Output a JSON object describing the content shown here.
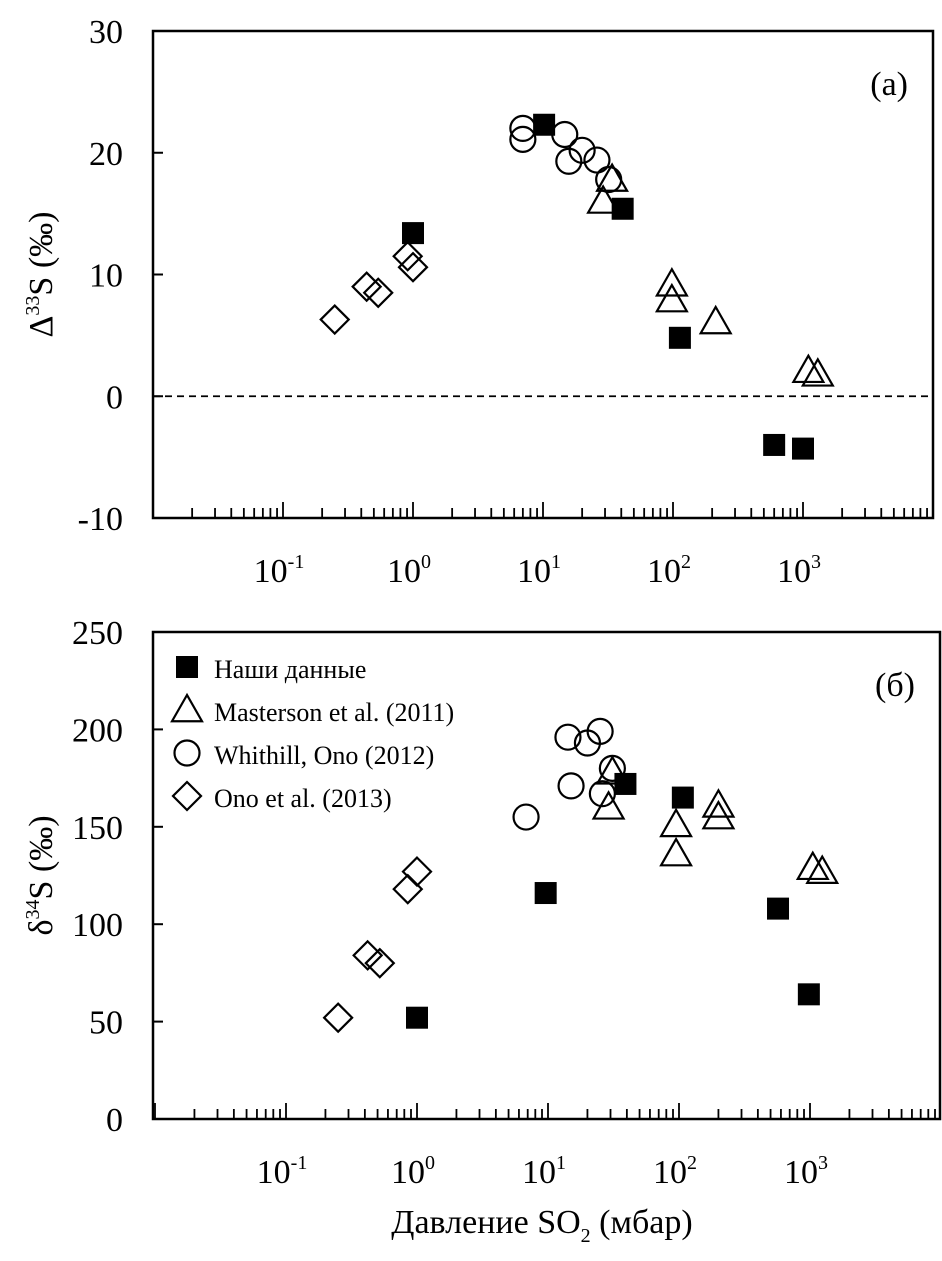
{
  "chart_data": [
    {
      "type": "scatter",
      "panel_label": "(a)",
      "ylabel_prefix": "Δ",
      "ylabel_sup": "33",
      "ylabel_rest": "S (‰)",
      "xscale": "log",
      "xlim": [
        0.01,
        10000
      ],
      "ylim": [
        -10,
        30
      ],
      "yticks": [
        -10,
        0,
        10,
        20,
        30
      ],
      "xtick_labels": [
        {
          "base": "10",
          "exp": "-1",
          "value": 0.1
        },
        {
          "base": "10",
          "exp": "0",
          "value": 1
        },
        {
          "base": "10",
          "exp": "1",
          "value": 10
        },
        {
          "base": "10",
          "exp": "2",
          "value": 100
        },
        {
          "base": "10",
          "exp": "3",
          "value": 1000
        }
      ],
      "reference_line": {
        "y": 0,
        "style": "dashed"
      },
      "grid": false,
      "series": [
        {
          "name": "Наши данные",
          "marker": "filled-square",
          "points": [
            [
              1.0,
              13.4
            ],
            [
              10.2,
              22.3
            ],
            [
              41,
              15.4
            ],
            [
              113,
              4.8
            ],
            [
              600,
              -4.0
            ],
            [
              1000,
              -4.3
            ]
          ]
        },
        {
          "name": "Masterson et al. (2011)",
          "marker": "open-triangle",
          "points": [
            [
              34,
              17.8
            ],
            [
              29,
              16.0
            ],
            [
              98,
              9.2
            ],
            [
              98,
              7.9
            ],
            [
              213,
              6.1
            ],
            [
              1100,
              2.1
            ],
            [
              1300,
              1.8
            ]
          ]
        },
        {
          "name": "Whithill, Ono (2012)",
          "marker": "open-circle",
          "points": [
            [
              7.0,
              22.0
            ],
            [
              7.0,
              21.1
            ],
            [
              14.7,
              21.5
            ],
            [
              15.8,
              19.3
            ],
            [
              20,
              20.2
            ],
            [
              26,
              19.4
            ],
            [
              32,
              17.8
            ]
          ]
        },
        {
          "name": "Ono et al. (2013)",
          "marker": "open-diamond",
          "points": [
            [
              0.25,
              6.3
            ],
            [
              0.44,
              9.0
            ],
            [
              0.54,
              8.5
            ],
            [
              0.91,
              11.5
            ],
            [
              1.0,
              10.6
            ]
          ]
        }
      ]
    },
    {
      "type": "scatter",
      "panel_label": "(б)",
      "ylabel_prefix": "δ",
      "ylabel_sup": "34",
      "ylabel_rest": "S (‰)",
      "xlabel_main": "Давление SO",
      "xlabel_sub": "2",
      "xlabel_rest": " (мбар)",
      "xscale": "log",
      "xlim": [
        0.01,
        10000
      ],
      "ylim": [
        0,
        250
      ],
      "yticks": [
        0,
        50,
        100,
        150,
        200,
        250
      ],
      "xtick_labels": [
        {
          "base": "10",
          "exp": "-1",
          "value": 0.1
        },
        {
          "base": "10",
          "exp": "0",
          "value": 1
        },
        {
          "base": "10",
          "exp": "1",
          "value": 10
        },
        {
          "base": "10",
          "exp": "2",
          "value": 100
        },
        {
          "base": "10",
          "exp": "3",
          "value": 1000
        }
      ],
      "legend_position": "top-left",
      "grid": false,
      "series": [
        {
          "name": "Наши данные",
          "marker": "filled-square",
          "points": [
            [
              1.0,
              52
            ],
            [
              9.6,
              116
            ],
            [
              39,
              172
            ],
            [
              107,
              165
            ],
            [
              570,
              108
            ],
            [
              980,
              64
            ]
          ]
        },
        {
          "name": "Masterson et al. (2011)",
          "marker": "open-triangle",
          "points": [
            [
              31,
              178
            ],
            [
              29,
              160
            ],
            [
              95,
              151
            ],
            [
              95,
              136
            ],
            [
              200,
              161
            ],
            [
              200,
              155
            ],
            [
              1050,
              129
            ],
            [
              1240,
              127
            ]
          ]
        },
        {
          "name": "Whithill, Ono (2012)",
          "marker": "open-circle",
          "points": [
            [
              6.8,
              155
            ],
            [
              14.2,
              196
            ],
            [
              20,
              193
            ],
            [
              25,
              199
            ],
            [
              31,
              180
            ],
            [
              15,
              171
            ],
            [
              26,
              167
            ]
          ]
        },
        {
          "name": "Ono et al. (2013)",
          "marker": "open-diamond",
          "points": [
            [
              0.25,
              52
            ],
            [
              0.42,
              84
            ],
            [
              0.52,
              80
            ],
            [
              0.85,
              118
            ],
            [
              1.0,
              127
            ]
          ]
        }
      ]
    }
  ],
  "colors": {
    "ink": "#000000",
    "background": "#ffffff"
  }
}
